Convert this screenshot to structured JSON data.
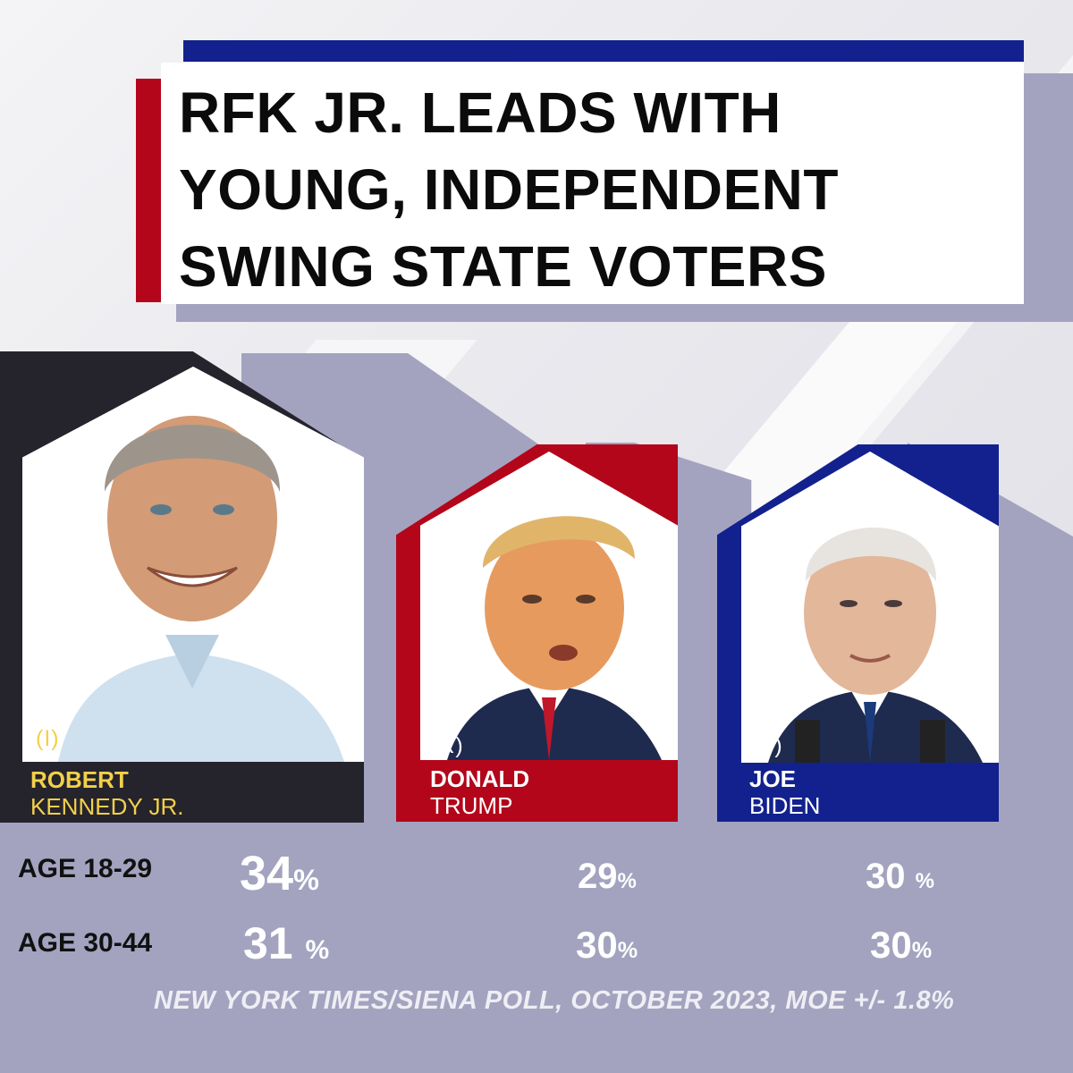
{
  "title": {
    "lines": [
      "RFK JR. LEADS WITH",
      "YOUNG, INDEPENDENT",
      "SWING STATE VOTERS"
    ]
  },
  "candidates": [
    {
      "party": "(I)",
      "first_name": "ROBERT",
      "last_name": "KENNEDY JR.",
      "color": "#25232c",
      "accent": "#f2d04a"
    },
    {
      "party": "(R)",
      "first_name": "DONALD",
      "last_name": "TRUMP",
      "color": "#b3061a",
      "accent": "#ffffff"
    },
    {
      "party": "(D)",
      "first_name": "JOE",
      "last_name": "BIDEN",
      "color": "#13218e",
      "accent": "#ffffff"
    }
  ],
  "results": [
    {
      "age_group": "AGE 18-29",
      "kennedy": "34",
      "trump": "29",
      "biden": "30"
    },
    {
      "age_group": "AGE 30-44",
      "kennedy": "31",
      "trump": "30",
      "biden": "30"
    }
  ],
  "percent_symbol": "%",
  "source": "NEW YORK TIMES/SIENA POLL, OCTOBER 2023, MOE +/- 1.8%",
  "colors": {
    "lavender": "#a3a3c0",
    "red": "#b3061a",
    "blue": "#13218e",
    "dark": "#25232c",
    "yellow": "#f2d04a"
  }
}
